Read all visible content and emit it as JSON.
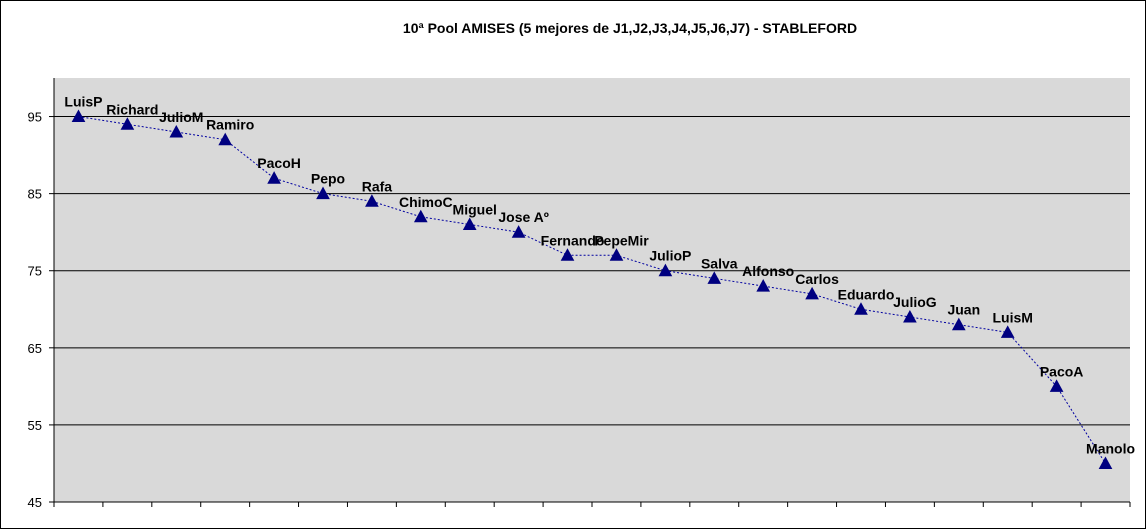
{
  "chart_data": {
    "type": "line",
    "title": "10ª Pool AMISES (5 mejores de J1,J2,J3,J4,J5,J6,J7) - STABLEFORD",
    "xlabel": "",
    "ylabel": "",
    "ylim": [
      45,
      100
    ],
    "yticks": [
      45,
      55,
      65,
      75,
      85,
      95
    ],
    "grid": true,
    "legend": "none",
    "colors": {
      "plot_bg": "#d9d9d9",
      "line": "#0000a0",
      "marker": "#000080",
      "grid": "#000000"
    },
    "marker": "triangle",
    "line_style": "dotted",
    "categories": [
      "LuisP",
      "Richard",
      "JulioM",
      "Ramiro",
      "PacoH",
      "Pepo",
      "Rafa",
      "ChimoC",
      "Miguel",
      "Jose Aº",
      "Fernando",
      "PepeMir",
      "JulioP",
      "Salva",
      "Alfonso",
      "Carlos",
      "Eduardo",
      "JulioG",
      "Juan",
      "LuisM",
      "PacoA",
      "Manolo"
    ],
    "values": [
      95,
      94,
      93,
      92,
      87,
      85,
      84,
      82,
      81,
      80,
      77,
      77,
      75,
      74,
      73,
      72,
      70,
      69,
      68,
      67,
      60,
      50
    ]
  }
}
